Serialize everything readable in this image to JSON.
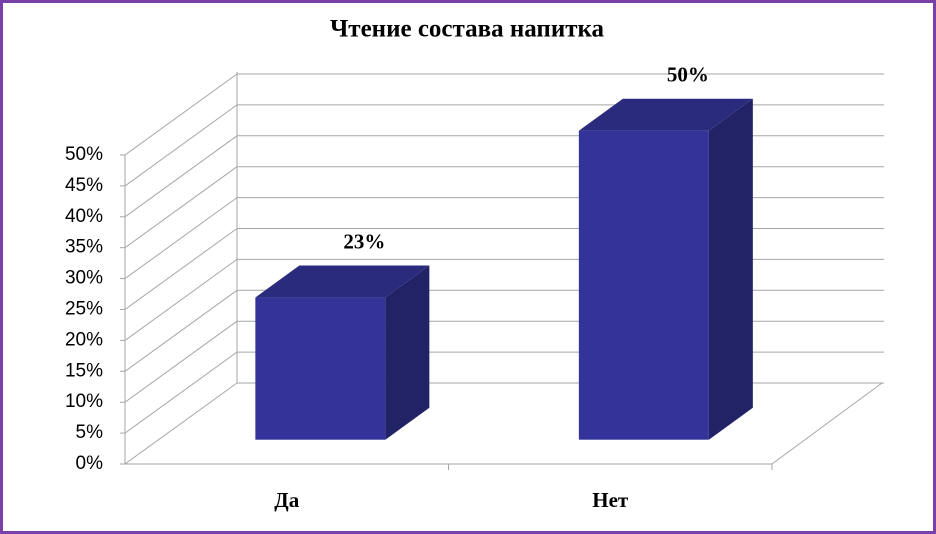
{
  "chart_data": {
    "type": "bar3d",
    "title": "Чтение  состава  напитка",
    "categories": [
      "Да",
      "Нет"
    ],
    "values": [
      23,
      50
    ],
    "value_labels": [
      "23%",
      "50%"
    ],
    "colors": {
      "front": "#333399",
      "side": "#222266",
      "top": "#2b2b7d"
    },
    "ylim": [
      0,
      50
    ],
    "yticks": [
      {
        "value": 0,
        "label": "0%"
      },
      {
        "value": 5,
        "label": "5%"
      },
      {
        "value": 10,
        "label": "10%"
      },
      {
        "value": 15,
        "label": "15%"
      },
      {
        "value": 20,
        "label": "20%"
      },
      {
        "value": 25,
        "label": "25%"
      },
      {
        "value": 30,
        "label": "30%"
      },
      {
        "value": 35,
        "label": "35%"
      },
      {
        "value": 40,
        "label": "40%"
      },
      {
        "value": 45,
        "label": "45%"
      },
      {
        "value": 50,
        "label": "50%"
      }
    ],
    "grid": true
  }
}
